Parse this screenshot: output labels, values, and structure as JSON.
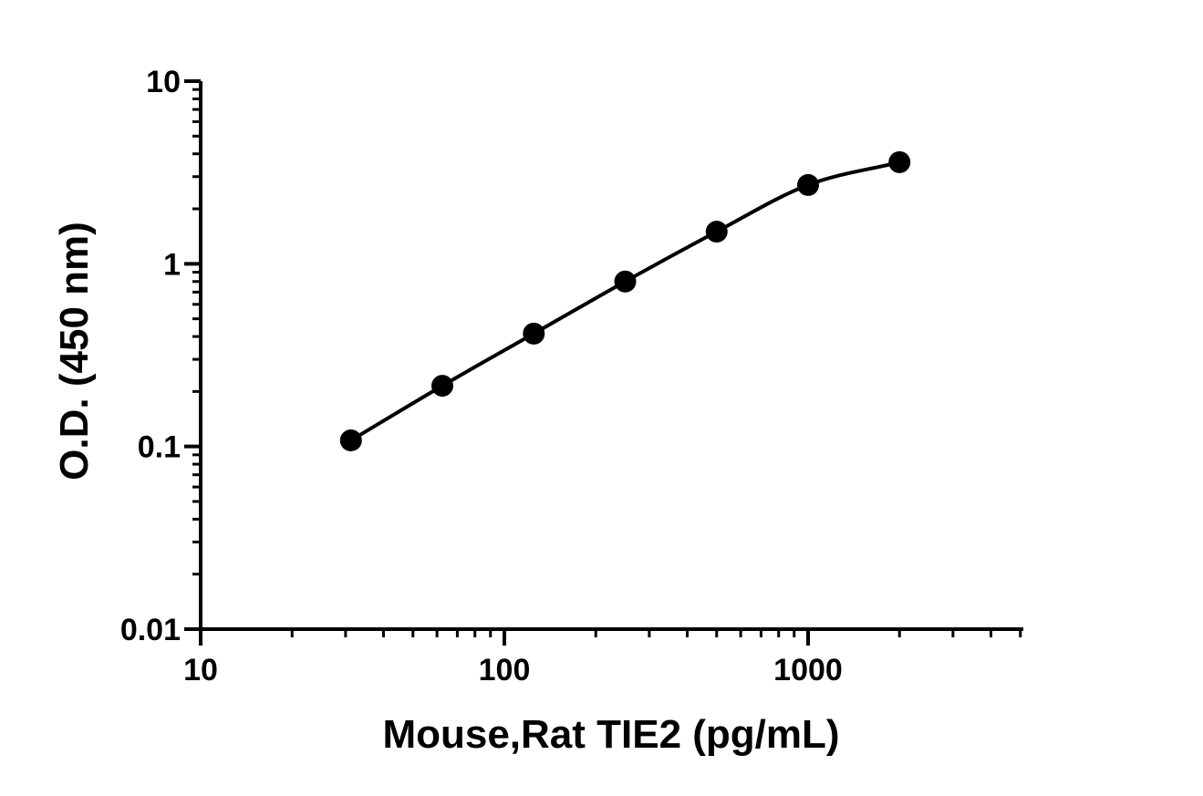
{
  "chart_data": {
    "type": "scatter",
    "xlabel": "Mouse,Rat TIE2 (pg/mL)",
    "ylabel": "O.D. (450 nm)",
    "x_scale": "log",
    "y_scale": "log",
    "xlim": [
      10,
      5000
    ],
    "ylim": [
      0.01,
      10
    ],
    "x_ticks": [
      10,
      100,
      1000
    ],
    "x_tick_labels": [
      "10",
      "100",
      "1000"
    ],
    "y_ticks": [
      0.01,
      0.1,
      1,
      10
    ],
    "y_tick_labels": [
      "0.01",
      "0.1",
      "1",
      "10"
    ],
    "grid": false,
    "series": [
      {
        "x": [
          31.25,
          62.5,
          125,
          250,
          500,
          1000,
          2000
        ],
        "y": [
          0.108,
          0.215,
          0.415,
          0.8,
          1.5,
          2.7,
          3.6
        ],
        "marker": "circle",
        "fit_curve": true
      }
    ],
    "color": "#000000"
  }
}
